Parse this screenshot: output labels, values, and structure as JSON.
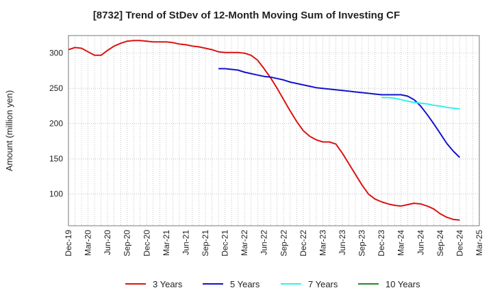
{
  "chart_data": {
    "type": "line",
    "title": "[8732]  Trend of StDev of 12-Month Moving Sum of Investing CF",
    "ylabel": "Amount (million yen)",
    "xlabel": "",
    "ylim": [
      55,
      325
    ],
    "yticks": [
      100,
      150,
      200,
      250,
      300
    ],
    "x_tick_labels": [
      "Dec-19",
      "Mar-20",
      "Jun-20",
      "Sep-20",
      "Dec-20",
      "Mar-21",
      "Jun-21",
      "Sep-21",
      "Dec-21",
      "Mar-22",
      "Jun-22",
      "Sep-22",
      "Dec-22",
      "Mar-23",
      "Jun-23",
      "Sep-23",
      "Dec-23",
      "Mar-24",
      "Jun-24",
      "Sep-24",
      "Dec-24",
      "Mar-25"
    ],
    "grid": true,
    "legend_position": "bottom",
    "series": [
      {
        "name": "3 Years",
        "color": "#dd1111",
        "points": [
          [
            "Dec-19",
            305
          ],
          [
            "Jan-20",
            308
          ],
          [
            "Feb-20",
            307
          ],
          [
            "Mar-20",
            302
          ],
          [
            "Apr-20",
            297
          ],
          [
            "May-20",
            297
          ],
          [
            "Jun-20",
            304
          ],
          [
            "Jul-20",
            310
          ],
          [
            "Aug-20",
            314
          ],
          [
            "Sep-20",
            317
          ],
          [
            "Oct-20",
            318
          ],
          [
            "Nov-20",
            318
          ],
          [
            "Dec-20",
            317
          ],
          [
            "Jan-21",
            316
          ],
          [
            "Feb-21",
            316
          ],
          [
            "Mar-21",
            316
          ],
          [
            "Apr-21",
            315
          ],
          [
            "May-21",
            313
          ],
          [
            "Jun-21",
            312
          ],
          [
            "Jul-21",
            310
          ],
          [
            "Aug-21",
            309
          ],
          [
            "Sep-21",
            307
          ],
          [
            "Oct-21",
            305
          ],
          [
            "Nov-21",
            302
          ],
          [
            "Dec-21",
            301
          ],
          [
            "Jan-22",
            301
          ],
          [
            "Feb-22",
            301
          ],
          [
            "Mar-22",
            300
          ],
          [
            "Apr-22",
            297
          ],
          [
            "May-22",
            290
          ],
          [
            "Jun-22",
            278
          ],
          [
            "Jul-22",
            265
          ],
          [
            "Aug-22",
            250
          ],
          [
            "Sep-22",
            234
          ],
          [
            "Oct-22",
            218
          ],
          [
            "Nov-22",
            203
          ],
          [
            "Dec-22",
            190
          ],
          [
            "Jan-23",
            182
          ],
          [
            "Feb-23",
            177
          ],
          [
            "Mar-23",
            174
          ],
          [
            "Apr-23",
            174
          ],
          [
            "May-23",
            171
          ],
          [
            "Jun-23",
            158
          ],
          [
            "Jul-23",
            143
          ],
          [
            "Aug-23",
            128
          ],
          [
            "Sep-23",
            113
          ],
          [
            "Oct-23",
            100
          ],
          [
            "Nov-23",
            93
          ],
          [
            "Dec-23",
            89
          ],
          [
            "Jan-24",
            86
          ],
          [
            "Feb-24",
            84
          ],
          [
            "Mar-24",
            83
          ],
          [
            "Apr-24",
            85
          ],
          [
            "May-24",
            87
          ],
          [
            "Jun-24",
            86
          ],
          [
            "Jul-24",
            83
          ],
          [
            "Aug-24",
            79
          ],
          [
            "Sep-24",
            72
          ],
          [
            "Oct-24",
            67
          ],
          [
            "Nov-24",
            64
          ],
          [
            "Dec-24",
            63
          ]
        ]
      },
      {
        "name": "5 Years",
        "color": "#1111cc",
        "points": [
          [
            "Nov-21",
            278
          ],
          [
            "Dec-21",
            278
          ],
          [
            "Jan-22",
            277
          ],
          [
            "Feb-22",
            276
          ],
          [
            "Mar-22",
            273
          ],
          [
            "Apr-22",
            271
          ],
          [
            "May-22",
            269
          ],
          [
            "Jun-22",
            267
          ],
          [
            "Jul-22",
            266
          ],
          [
            "Aug-22",
            264
          ],
          [
            "Sep-22",
            262
          ],
          [
            "Oct-22",
            259
          ],
          [
            "Nov-22",
            257
          ],
          [
            "Dec-22",
            255
          ],
          [
            "Jan-23",
            253
          ],
          [
            "Feb-23",
            251
          ],
          [
            "Mar-23",
            250
          ],
          [
            "Apr-23",
            249
          ],
          [
            "May-23",
            248
          ],
          [
            "Jun-23",
            247
          ],
          [
            "Jul-23",
            246
          ],
          [
            "Aug-23",
            245
          ],
          [
            "Sep-23",
            244
          ],
          [
            "Oct-23",
            243
          ],
          [
            "Nov-23",
            242
          ],
          [
            "Dec-23",
            241
          ],
          [
            "Jan-24",
            241
          ],
          [
            "Feb-24",
            241
          ],
          [
            "Mar-24",
            241
          ],
          [
            "Apr-24",
            239
          ],
          [
            "May-24",
            234
          ],
          [
            "Jun-24",
            225
          ],
          [
            "Jul-24",
            213
          ],
          [
            "Aug-24",
            200
          ],
          [
            "Sep-24",
            186
          ],
          [
            "Oct-24",
            172
          ],
          [
            "Nov-24",
            161
          ],
          [
            "Dec-24",
            152
          ]
        ]
      },
      {
        "name": "7 Years",
        "color": "#33eeee",
        "points": [
          [
            "Dec-23",
            237
          ],
          [
            "Jan-24",
            237
          ],
          [
            "Feb-24",
            236
          ],
          [
            "Mar-24",
            234
          ],
          [
            "Apr-24",
            232
          ],
          [
            "May-24",
            230
          ],
          [
            "Jun-24",
            229
          ],
          [
            "Jul-24",
            228
          ],
          [
            "Aug-24",
            226
          ],
          [
            "Sep-24",
            225
          ],
          [
            "Oct-24",
            223
          ],
          [
            "Nov-24",
            222
          ],
          [
            "Dec-24",
            221
          ]
        ]
      },
      {
        "name": "10 Years",
        "color": "#228822",
        "points": []
      }
    ]
  }
}
